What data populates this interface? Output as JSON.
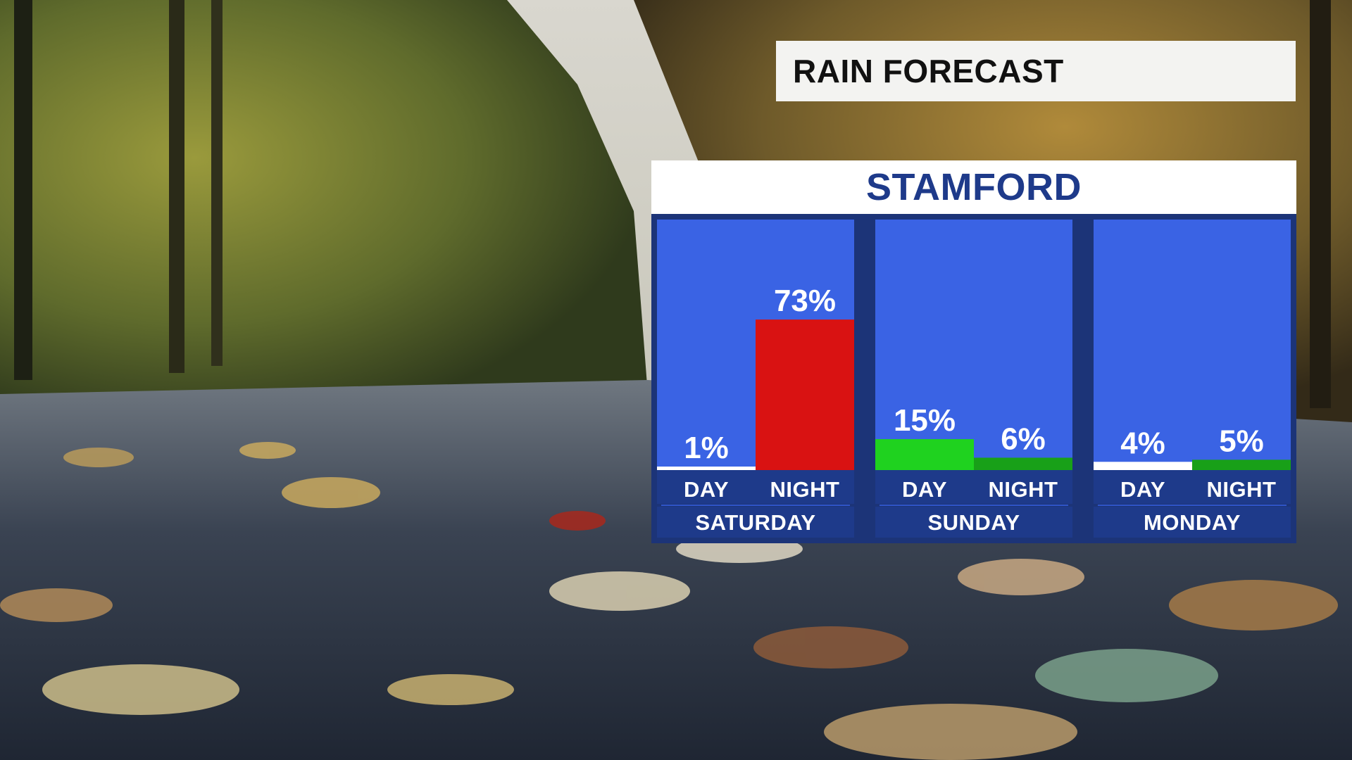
{
  "title": "RAIN FORECAST",
  "location": "STAMFORD",
  "colors": {
    "panel_frame": "#1c3478",
    "plot_background": "#3a63e4",
    "label_strip": "#1e3a8a",
    "title_background": "#f3f3f1",
    "title_text": "#111111",
    "location_text": "#1e3a8a",
    "bar_low": "#ffffff",
    "bar_light": "#1fd21f",
    "bar_light_dark": "#18a018",
    "bar_high": "#d91212"
  },
  "chart_data": {
    "type": "bar",
    "title": "RAIN FORECAST",
    "subtitle": "STAMFORD",
    "unit": "%",
    "ylim": [
      0,
      100
    ],
    "grid": false,
    "groups": [
      {
        "day": "SATURDAY",
        "bars": [
          {
            "period": "DAY",
            "value": 1,
            "label": "1%",
            "color": "#ffffff"
          },
          {
            "period": "NIGHT",
            "value": 73,
            "label": "73%",
            "color": "#d91212"
          }
        ]
      },
      {
        "day": "SUNDAY",
        "bars": [
          {
            "period": "DAY",
            "value": 15,
            "label": "15%",
            "color": "#1fd21f"
          },
          {
            "period": "NIGHT",
            "value": 6,
            "label": "6%",
            "color": "#18a018"
          }
        ]
      },
      {
        "day": "MONDAY",
        "bars": [
          {
            "period": "DAY",
            "value": 4,
            "label": "4%",
            "color": "#ffffff"
          },
          {
            "period": "NIGHT",
            "value": 5,
            "label": "5%",
            "color": "#18a018"
          }
        ]
      }
    ]
  }
}
